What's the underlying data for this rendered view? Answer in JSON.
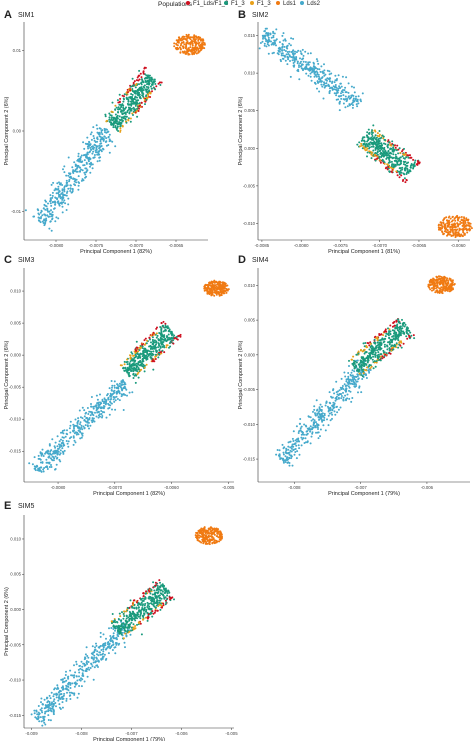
{
  "legend": {
    "title": "Populations",
    "items": [
      {
        "label": "F1_Lds/F1_3",
        "color": "#cf1020"
      },
      {
        "label": "F1_3",
        "color": "#1a9a7c"
      },
      {
        "label": "F1_3",
        "color": "#e8a019"
      },
      {
        "label": "Lds1",
        "color": "#f07a12"
      },
      {
        "label": "Lds2",
        "color": "#45a9cb"
      }
    ]
  },
  "colors": {
    "red": "#cf1020",
    "green": "#1a9a7c",
    "yellow": "#e8a019",
    "orange": "#f07a12",
    "blue": "#45a9cb"
  },
  "chart_data": [
    {
      "type": "scatter",
      "letter": "A",
      "title": "SIM1",
      "xlabel": "Principal Component 1 (82%)",
      "ylabel": "Principal Component 2 (6%)",
      "xlim": [
        -0.0084,
        -0.0061
      ],
      "ylim": [
        -0.0135,
        0.0135
      ],
      "xticks": [
        -0.008,
        -0.0075,
        -0.007,
        -0.0065
      ],
      "xtick_labels": [
        "-0.0080",
        "-0.0075",
        "-0.0070",
        "-0.0065"
      ],
      "yticks": [
        0.01,
        0.0,
        -0.01
      ],
      "ytick_labels": [
        "0.01",
        "0.00",
        "-0.01"
      ],
      "clusters": [
        {
          "population": "Lds2",
          "center": [
            -0.00776,
            -0.0055
          ],
          "axis_start": [
            -0.0082,
            -0.0113
          ],
          "axis_end": [
            -0.00735,
            0.0001
          ],
          "spread": 0.0011
        },
        {
          "population": "F1",
          "center": [
            -0.0071,
            0.0037
          ],
          "axis_start": [
            -0.0073,
            0.0006
          ],
          "axis_end": [
            -0.0068,
            0.0067
          ],
          "spread": 0.0011
        },
        {
          "population": "Lds1",
          "center": [
            -0.00633,
            0.0107
          ],
          "axis_start": [
            -0.0065,
            0.0107
          ],
          "axis_end": [
            -0.0062,
            0.0107
          ],
          "spread": 0.0012
        }
      ]
    },
    {
      "type": "scatter",
      "letter": "B",
      "title": "SIM2",
      "xlabel": "Principal Component 1 (81%)",
      "ylabel": "Principal Component 2 (6%)",
      "xlim": [
        -0.00855,
        -0.00585
      ],
      "ylim": [
        -0.0122,
        0.0168
      ],
      "xticks": [
        -0.0085,
        -0.008,
        -0.0075,
        -0.007,
        -0.0065,
        -0.006
      ],
      "xtick_labels": [
        "-0.0085",
        "-0.0080",
        "-0.0075",
        "-0.0070",
        "-0.0065",
        "-0.0060"
      ],
      "yticks": [
        0.015,
        0.01,
        0.005,
        0.0,
        -0.005,
        -0.01
      ],
      "ytick_labels": [
        "0.015",
        "0.010",
        "0.005",
        "0.000",
        "-0.005",
        "-0.010"
      ],
      "clusters": [
        {
          "population": "Lds2",
          "center": [
            -0.00784,
            0.0103
          ],
          "axis_start": [
            -0.0085,
            0.0153
          ],
          "axis_end": [
            -0.00725,
            0.0057
          ],
          "spread": 0.0012
        },
        {
          "population": "F1",
          "center": [
            -0.0069,
            -0.0007
          ],
          "axis_start": [
            -0.0072,
            0.0017
          ],
          "axis_end": [
            -0.0066,
            -0.0031
          ],
          "spread": 0.0013
        },
        {
          "population": "Lds1",
          "center": [
            -0.00604,
            -0.0104
          ],
          "axis_start": [
            -0.0062,
            -0.0104
          ],
          "axis_end": [
            -0.0059,
            -0.0104
          ],
          "spread": 0.0014
        }
      ]
    },
    {
      "type": "scatter",
      "letter": "C",
      "title": "SIM3",
      "xlabel": "Principal Component 1 (82%)",
      "ylabel": "Principal Component 2 (6%)",
      "xlim": [
        -0.0086,
        -0.0049
      ],
      "ylim": [
        -0.0198,
        0.0136
      ],
      "xticks": [
        -0.008,
        -0.007,
        -0.006,
        -0.005
      ],
      "xtick_labels": [
        "-0.0080",
        "-0.0070",
        "-0.0060",
        "-0.005"
      ],
      "yticks": [
        0.01,
        0.005,
        0.0,
        -0.005,
        -0.01,
        -0.015
      ],
      "ytick_labels": [
        "0.010",
        "0.005",
        "0.000",
        "-0.005",
        "-0.010",
        "-0.015"
      ],
      "clusters": [
        {
          "population": "Lds2",
          "center": [
            -0.00755,
            -0.0111
          ],
          "axis_start": [
            -0.0084,
            -0.0179
          ],
          "axis_end": [
            -0.0068,
            -0.0044
          ],
          "spread": 0.0012
        },
        {
          "population": "F1",
          "center": [
            -0.0064,
            0.0006
          ],
          "axis_start": [
            -0.0068,
            -0.0028
          ],
          "axis_end": [
            -0.006,
            0.004
          ],
          "spread": 0.0014
        },
        {
          "population": "Lds1",
          "center": [
            -0.00521,
            0.0104
          ],
          "axis_start": [
            -0.0055,
            0.0104
          ],
          "axis_end": [
            -0.0049,
            0.0104
          ],
          "spread": 0.0012
        }
      ]
    },
    {
      "type": "scatter",
      "letter": "D",
      "title": "SIM4",
      "xlabel": "Principal Component 1 (79%)",
      "ylabel": "Principal Component 2 (6%)",
      "xlim": [
        -0.00855,
        -0.00535
      ],
      "ylim": [
        -0.0183,
        0.0125
      ],
      "xticks": [
        -0.008,
        -0.007,
        -0.006
      ],
      "xtick_labels": [
        "-0.008",
        "-0.007",
        "-0.006"
      ],
      "yticks": [
        0.01,
        0.005,
        0.0,
        -0.005,
        -0.01,
        -0.015
      ],
      "ytick_labels": [
        "0.010",
        "0.005",
        "0.000",
        "-0.005",
        "-0.010",
        "-0.015"
      ],
      "clusters": [
        {
          "population": "Lds2",
          "center": [
            -0.0075,
            -0.0082
          ],
          "axis_start": [
            -0.0082,
            -0.0152
          ],
          "axis_end": [
            -0.0069,
            -0.0014
          ],
          "spread": 0.0012
        },
        {
          "population": "F1",
          "center": [
            -0.0067,
            0.0011
          ],
          "axis_start": [
            -0.0071,
            -0.0019
          ],
          "axis_end": [
            -0.0063,
            0.0041
          ],
          "spread": 0.0013
        },
        {
          "population": "Lds1",
          "center": [
            -0.00578,
            0.0101
          ],
          "axis_start": [
            -0.006,
            0.0101
          ],
          "axis_end": [
            -0.0056,
            0.0101
          ],
          "spread": 0.0012
        }
      ]
    },
    {
      "type": "scatter",
      "letter": "E",
      "title": "SIM5",
      "xlabel": "Principal Component 1 (79%)",
      "ylabel": "Principal Component 2 (6%)",
      "xlim": [
        -0.00915,
        -0.00495
      ],
      "ylim": [
        -0.0168,
        0.0134
      ],
      "xticks": [
        -0.009,
        -0.008,
        -0.007,
        -0.006,
        -0.005
      ],
      "xtick_labels": [
        "-0.009",
        "-0.008",
        "-0.007",
        "-0.006",
        "-0.005"
      ],
      "yticks": [
        0.01,
        0.005,
        0.0,
        -0.005,
        -0.01,
        -0.015
      ],
      "ytick_labels": [
        "0.010",
        "0.005",
        "0.000",
        "-0.005",
        "-0.010",
        "-0.015"
      ],
      "clusters": [
        {
          "population": "Lds2",
          "center": [
            -0.008,
            -0.0088
          ],
          "axis_start": [
            -0.0089,
            -0.0157
          ],
          "axis_end": [
            -0.0071,
            -0.0021
          ],
          "spread": 0.0012
        },
        {
          "population": "F1",
          "center": [
            -0.0068,
            0.0
          ],
          "axis_start": [
            -0.0073,
            -0.003
          ],
          "axis_end": [
            -0.0063,
            0.003
          ],
          "spread": 0.0013
        },
        {
          "population": "Lds1",
          "center": [
            -0.00545,
            0.0105
          ],
          "axis_start": [
            -0.0057,
            0.0105
          ],
          "axis_end": [
            -0.0052,
            0.0105
          ],
          "spread": 0.0012
        }
      ]
    }
  ]
}
